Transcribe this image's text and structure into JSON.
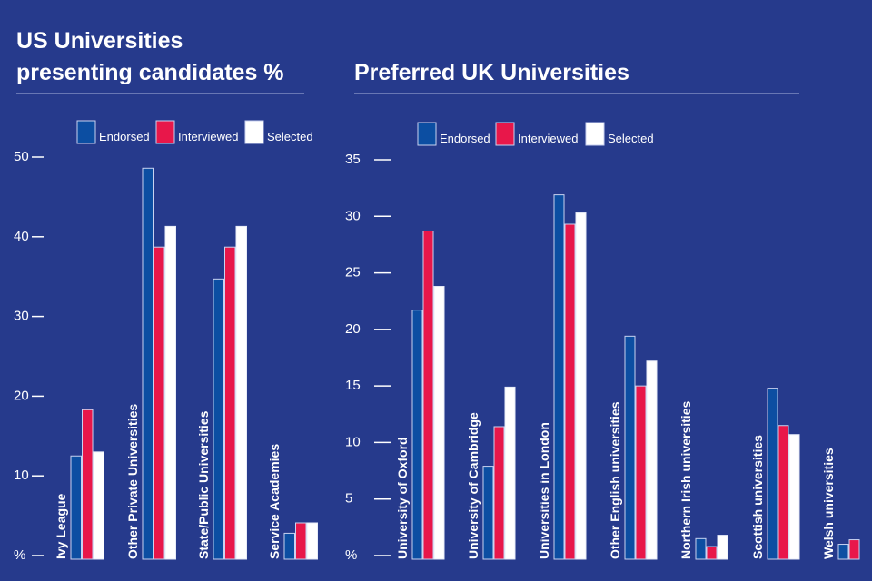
{
  "chart_data": [
    {
      "type": "bar",
      "title": [
        "US Universities",
        "presenting candidates %"
      ],
      "ylabel": "%",
      "ylim": [
        0,
        50
      ],
      "yticks": [
        "%",
        "10",
        "20",
        "30",
        "40",
        "50"
      ],
      "legend": [
        "Endorsed",
        "Interviewed",
        "Selected"
      ],
      "legend_position": "top",
      "categories": [
        "Ivy League",
        "Other Private Universities",
        "State/Public Universities",
        "Service Academies"
      ],
      "series": [
        {
          "name": "Endorsed",
          "values": [
            12.5,
            48.6,
            34.7,
            2.8
          ]
        },
        {
          "name": "Interviewed",
          "values": [
            18.3,
            38.7,
            38.7,
            4.1
          ]
        },
        {
          "name": "Selected",
          "values": [
            13.0,
            41.3,
            41.3,
            4.1
          ]
        }
      ]
    },
    {
      "type": "bar",
      "title": [
        "Preferred UK Universities"
      ],
      "ylabel": "%",
      "ylim": [
        0,
        35
      ],
      "yticks": [
        "%",
        "5",
        "10",
        "15",
        "20",
        "25",
        "30",
        "35"
      ],
      "legend": [
        "Endorsed",
        "Interviewed",
        "Selected"
      ],
      "legend_position": "top",
      "categories": [
        "University of Oxford",
        "University of Cambridge",
        "Universities in London",
        "Other English universities",
        "Northern Irish universities",
        "Scottish universities",
        "Welsh universities"
      ],
      "series": [
        {
          "name": "Endorsed",
          "values": [
            21.7,
            7.9,
            31.9,
            19.4,
            1.5,
            14.8,
            1.0
          ]
        },
        {
          "name": "Interviewed",
          "values": [
            28.7,
            11.4,
            29.3,
            15.0,
            0.8,
            11.5,
            1.4
          ]
        },
        {
          "name": "Selected",
          "values": [
            23.8,
            14.9,
            30.3,
            17.2,
            1.8,
            10.7,
            null
          ]
        }
      ]
    }
  ],
  "colors": {
    "Endorsed": "#0c4ea2",
    "Interviewed": "#e8174a",
    "Selected": "#ffffff",
    "background": "#263a8c"
  }
}
